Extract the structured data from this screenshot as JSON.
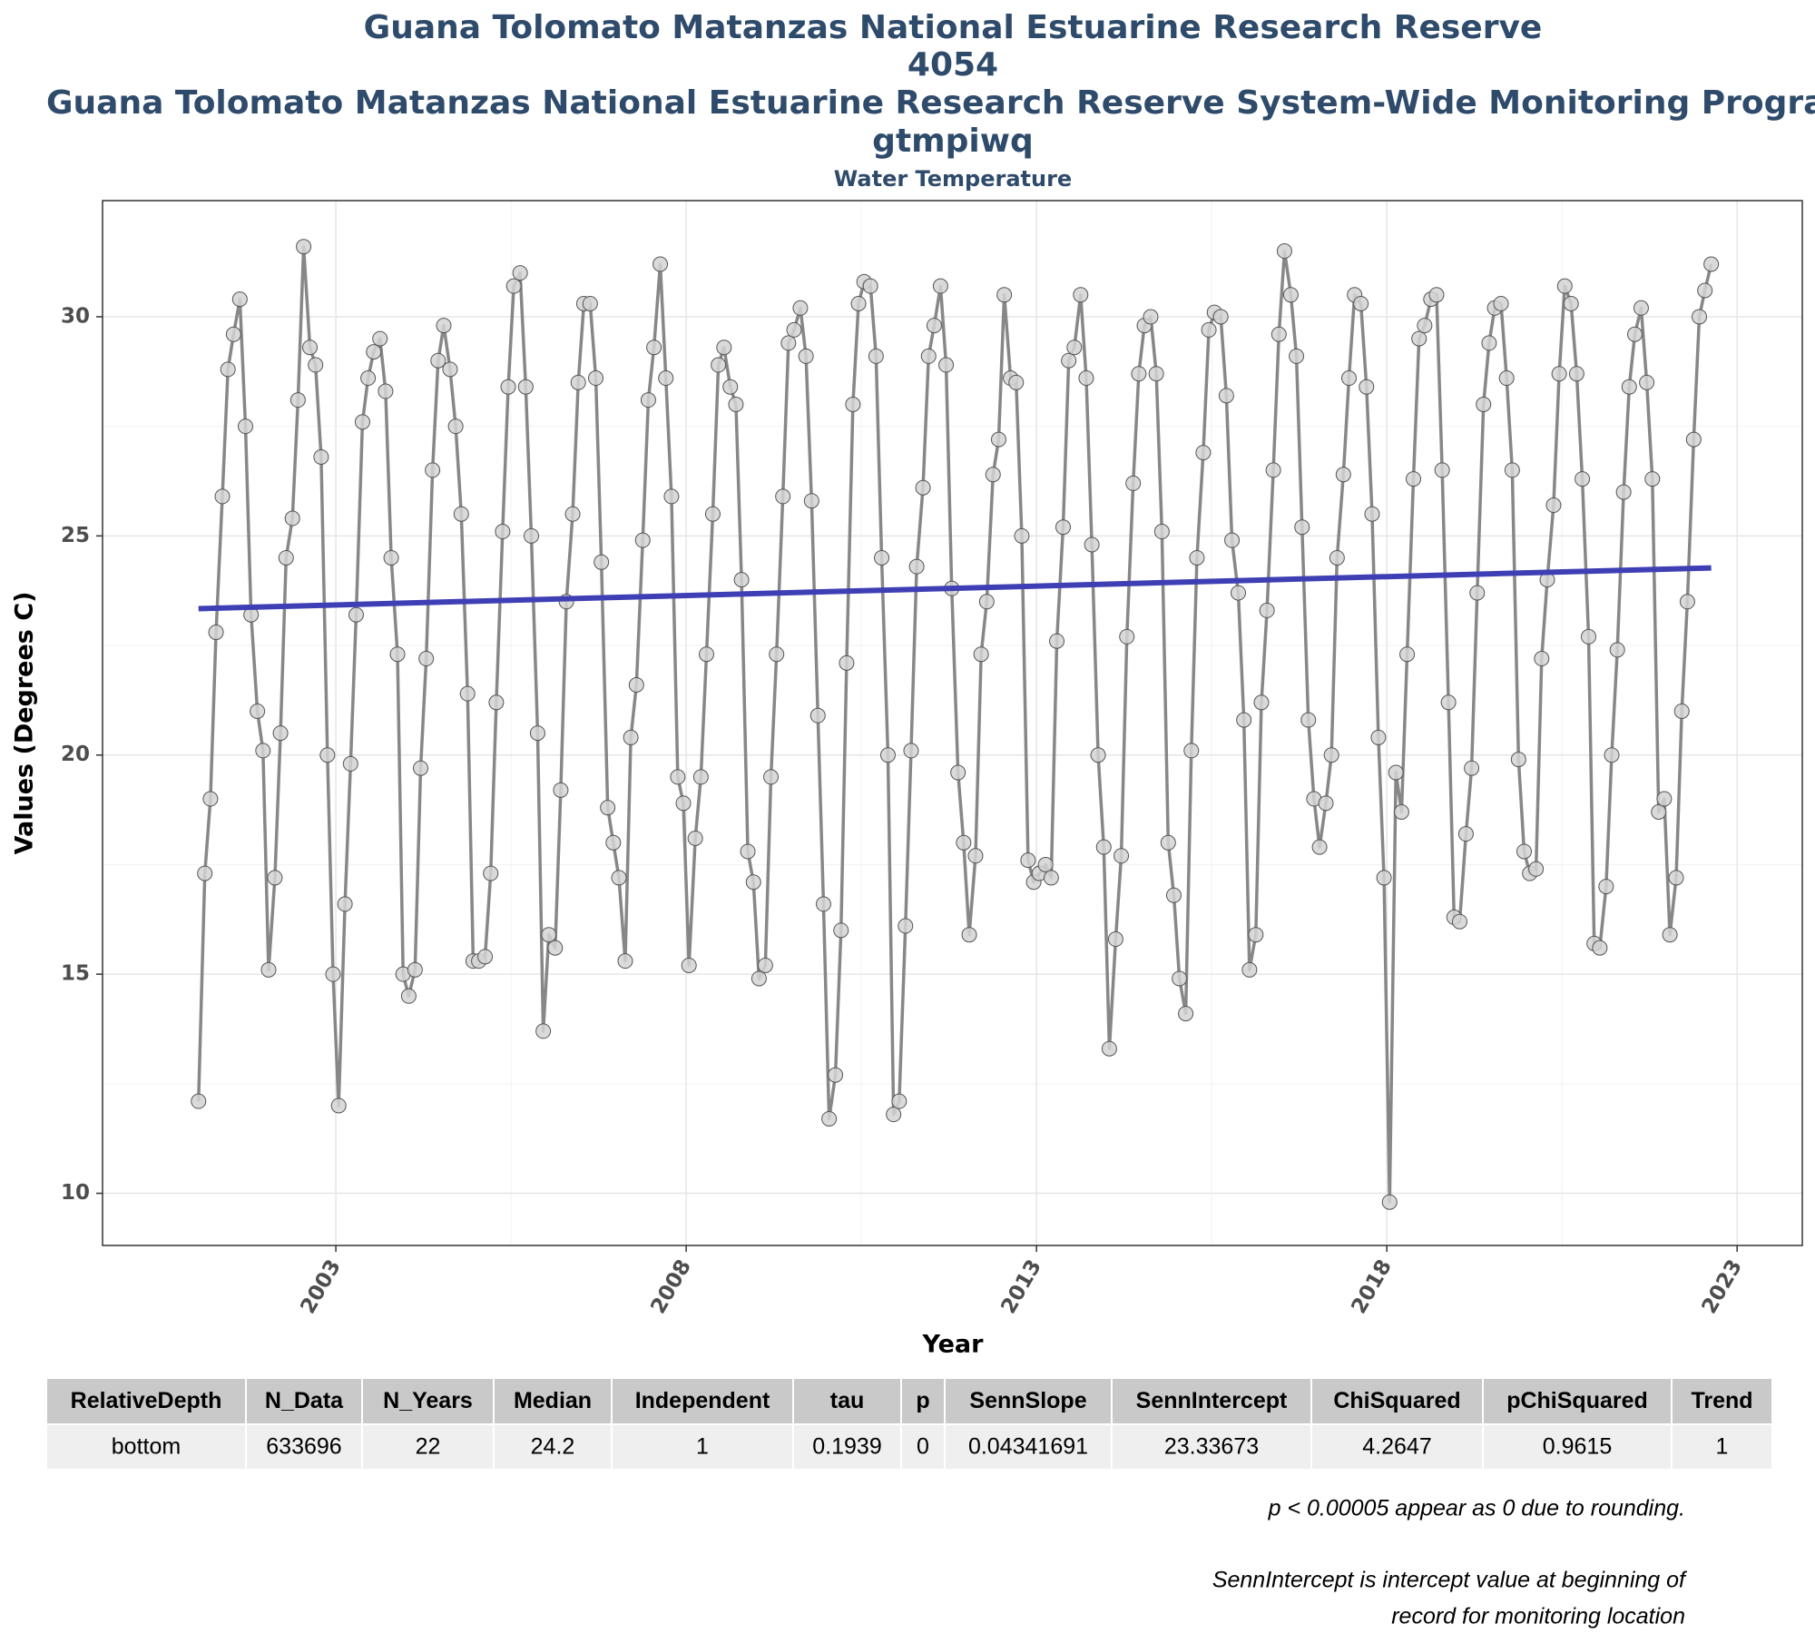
{
  "chart_data": {
    "type": "line",
    "title": [
      "Guana Tolomato Matanzas National Estuarine Research Reserve",
      "4054",
      "Guana Tolomato Matanzas National Estuarine Research Reserve System-Wide Monitoring Program",
      "gtmpiwq"
    ],
    "subtitle": "Water Temperature",
    "x_label": "Year",
    "y_label": "Values (Degrees C)",
    "xlim": [
      1999.67,
      2023.93
    ],
    "ylim": [
      8.81,
      32.65
    ],
    "xticks": [
      2003,
      2008,
      2013,
      2018,
      2023
    ],
    "yticks": [
      10,
      15,
      20,
      25,
      30
    ],
    "grid": true,
    "x": [
      2001.04,
      2001.13,
      2001.21,
      2001.29,
      2001.38,
      2001.46,
      2001.54,
      2001.63,
      2001.71,
      2001.79,
      2001.88,
      2001.96,
      2002.04,
      2002.13,
      2002.21,
      2002.29,
      2002.38,
      2002.46,
      2002.54,
      2002.63,
      2002.71,
      2002.79,
      2002.88,
      2002.96,
      2003.04,
      2003.13,
      2003.21,
      2003.29,
      2003.38,
      2003.46,
      2003.54,
      2003.63,
      2003.71,
      2003.79,
      2003.88,
      2003.96,
      2004.04,
      2004.13,
      2004.21,
      2004.29,
      2004.38,
      2004.46,
      2004.54,
      2004.63,
      2004.71,
      2004.79,
      2004.88,
      2004.96,
      2005.04,
      2005.13,
      2005.21,
      2005.29,
      2005.38,
      2005.46,
      2005.54,
      2005.63,
      2005.71,
      2005.79,
      2005.88,
      2005.96,
      2006.04,
      2006.13,
      2006.21,
      2006.29,
      2006.38,
      2006.46,
      2006.54,
      2006.63,
      2006.71,
      2006.79,
      2006.88,
      2006.96,
      2007.04,
      2007.13,
      2007.21,
      2007.29,
      2007.38,
      2007.46,
      2007.54,
      2007.63,
      2007.71,
      2007.79,
      2007.88,
      2007.96,
      2008.04,
      2008.13,
      2008.21,
      2008.29,
      2008.38,
      2008.46,
      2008.54,
      2008.63,
      2008.71,
      2008.79,
      2008.88,
      2008.96,
      2009.04,
      2009.13,
      2009.21,
      2009.29,
      2009.38,
      2009.46,
      2009.54,
      2009.63,
      2009.71,
      2009.79,
      2009.88,
      2009.96,
      2010.04,
      2010.13,
      2010.21,
      2010.29,
      2010.38,
      2010.46,
      2010.54,
      2010.63,
      2010.71,
      2010.79,
      2010.88,
      2010.96,
      2011.04,
      2011.13,
      2011.21,
      2011.29,
      2011.38,
      2011.46,
      2011.54,
      2011.63,
      2011.71,
      2011.79,
      2011.88,
      2011.96,
      2012.04,
      2012.13,
      2012.21,
      2012.29,
      2012.38,
      2012.46,
      2012.54,
      2012.63,
      2012.71,
      2012.79,
      2012.88,
      2012.96,
      2013.04,
      2013.13,
      2013.21,
      2013.29,
      2013.38,
      2013.46,
      2013.54,
      2013.63,
      2013.71,
      2013.79,
      2013.88,
      2013.96,
      2014.04,
      2014.13,
      2014.21,
      2014.29,
      2014.38,
      2014.46,
      2014.54,
      2014.63,
      2014.71,
      2014.79,
      2014.88,
      2014.96,
      2015.04,
      2015.13,
      2015.21,
      2015.29,
      2015.38,
      2015.46,
      2015.54,
      2015.63,
      2015.71,
      2015.79,
      2015.88,
      2015.96,
      2016.04,
      2016.13,
      2016.21,
      2016.29,
      2016.38,
      2016.46,
      2016.54,
      2016.63,
      2016.71,
      2016.79,
      2016.88,
      2016.96,
      2017.04,
      2017.13,
      2017.21,
      2017.29,
      2017.38,
      2017.46,
      2017.54,
      2017.63,
      2017.71,
      2017.79,
      2017.88,
      2017.96,
      2018.04,
      2018.13,
      2018.21,
      2018.29,
      2018.38,
      2018.46,
      2018.54,
      2018.63,
      2018.71,
      2018.79,
      2018.88,
      2018.96,
      2019.04,
      2019.13,
      2019.21,
      2019.29,
      2019.38,
      2019.46,
      2019.54,
      2019.63,
      2019.71,
      2019.79,
      2019.88,
      2019.96,
      2020.04,
      2020.13,
      2020.21,
      2020.29,
      2020.38,
      2020.46,
      2020.54,
      2020.63,
      2020.71,
      2020.79,
      2020.88,
      2020.96,
      2021.04,
      2021.13,
      2021.21,
      2021.29,
      2021.38,
      2021.46,
      2021.54,
      2021.63,
      2021.71,
      2021.79,
      2021.88,
      2021.96,
      2022.04,
      2022.13,
      2022.21,
      2022.29,
      2022.38,
      2022.46,
      2022.54,
      2022.63
    ],
    "series": [
      {
        "color": "#878787",
        "marker_fill": "#d3d3d3",
        "values": [
          12.1,
          17.3,
          19.0,
          22.8,
          25.9,
          28.8,
          29.6,
          30.4,
          27.5,
          23.2,
          21.0,
          20.1,
          15.1,
          17.2,
          20.5,
          24.5,
          25.4,
          28.1,
          31.6,
          29.3,
          28.9,
          26.8,
          20.0,
          15.0,
          12.0,
          16.6,
          19.8,
          23.2,
          27.6,
          28.6,
          29.2,
          29.5,
          28.3,
          24.5,
          22.3,
          15.0,
          14.5,
          15.1,
          19.7,
          22.2,
          26.5,
          29.0,
          29.8,
          28.8,
          27.5,
          25.5,
          21.4,
          15.3,
          15.3,
          15.4,
          17.3,
          21.2,
          25.1,
          28.4,
          30.7,
          31.0,
          28.4,
          25.0,
          20.5,
          13.7,
          15.9,
          15.6,
          19.2,
          23.5,
          25.5,
          28.5,
          30.3,
          30.3,
          28.6,
          24.4,
          18.8,
          18.0,
          17.2,
          15.3,
          20.4,
          21.6,
          24.9,
          28.1,
          29.3,
          31.2,
          28.6,
          25.9,
          19.5,
          18.9,
          15.2,
          18.1,
          19.5,
          22.3,
          25.5,
          28.9,
          29.3,
          28.4,
          28.0,
          24.0,
          17.8,
          17.1,
          14.9,
          15.2,
          19.5,
          22.3,
          25.9,
          29.4,
          29.7,
          30.2,
          29.1,
          25.8,
          20.9,
          16.6,
          11.7,
          12.7,
          16.0,
          22.1,
          28.0,
          30.3,
          30.8,
          30.7,
          29.1,
          24.5,
          20.0,
          11.8,
          12.1,
          16.1,
          20.1,
          24.3,
          26.1,
          29.1,
          29.8,
          30.7,
          28.9,
          23.8,
          19.6,
          18.0,
          15.9,
          17.7,
          22.3,
          23.5,
          26.4,
          27.2,
          30.5,
          28.6,
          28.5,
          25.0,
          17.6,
          17.1,
          17.3,
          17.5,
          17.2,
          22.6,
          25.2,
          29.0,
          29.3,
          30.5,
          28.6,
          24.8,
          20.0,
          17.9,
          13.3,
          15.8,
          17.7,
          22.7,
          26.2,
          28.7,
          29.8,
          30.0,
          28.7,
          25.1,
          18.0,
          16.8,
          14.9,
          14.1,
          20.1,
          24.5,
          26.9,
          29.7,
          30.1,
          30.0,
          28.2,
          24.9,
          23.7,
          20.8,
          15.1,
          15.9,
          21.2,
          23.3,
          26.5,
          29.6,
          31.5,
          30.5,
          29.1,
          25.2,
          20.8,
          19.0,
          17.9,
          18.9,
          20.0,
          24.5,
          26.4,
          28.6,
          30.5,
          30.3,
          28.4,
          25.5,
          20.4,
          17.2,
          9.8,
          19.6,
          18.7,
          22.3,
          26.3,
          29.5,
          29.8,
          30.4,
          30.5,
          26.5,
          21.2,
          16.3,
          16.2,
          18.2,
          19.7,
          23.7,
          28.0,
          29.4,
          30.2,
          30.3,
          28.6,
          26.5,
          19.9,
          17.8,
          17.3,
          17.4,
          22.2,
          24.0,
          25.7,
          28.7,
          30.7,
          30.3,
          28.7,
          26.3,
          22.7,
          15.7,
          15.6,
          17.0,
          20.0,
          22.4,
          26.0,
          28.4,
          29.6,
          30.2,
          28.5,
          26.3,
          18.7,
          19.0,
          15.9,
          17.2,
          21.0,
          23.5,
          27.2,
          30.0,
          30.6,
          31.2
        ]
      }
    ],
    "trend": {
      "color": "#3f3fb5",
      "x": [
        2001.04,
        2022.63
      ],
      "values": [
        23.34,
        24.27
      ]
    }
  },
  "table": {
    "headers": [
      "RelativeDepth",
      "N_Data",
      "N_Years",
      "Median",
      "Independent",
      "tau",
      "p",
      "SennSlope",
      "SennIntercept",
      "ChiSquared",
      "pChiSquared",
      "Trend"
    ],
    "rows": [
      [
        "bottom",
        "633696",
        "22",
        "24.2",
        "1",
        "0.1939",
        "0",
        "0.04341691",
        "23.33673",
        "4.2647",
        "0.9615",
        "1"
      ]
    ]
  },
  "notes": [
    "p < 0.00005 appear as 0 due to rounding.",
    "SennIntercept is intercept value at beginning of",
    "record for monitoring location"
  ]
}
